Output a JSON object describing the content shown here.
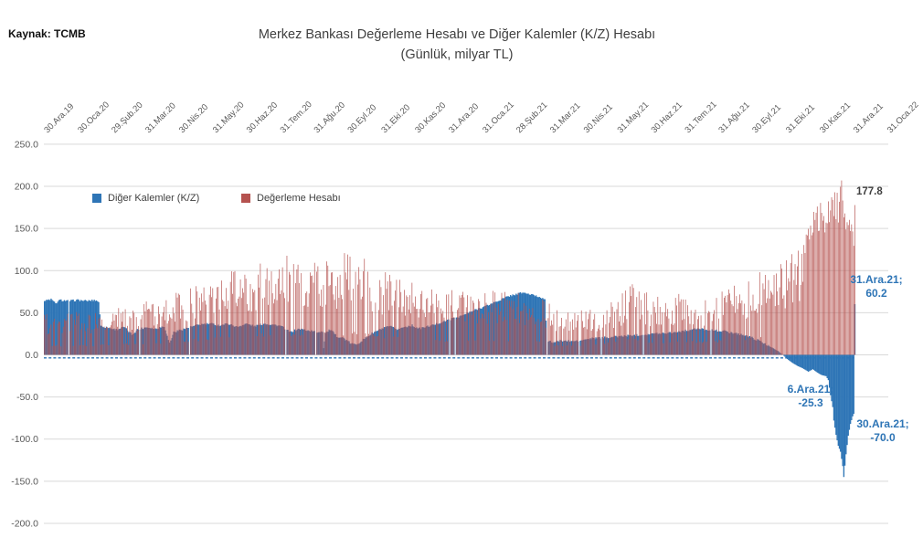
{
  "source_label": "Kaynak: TCMB",
  "chart_data": {
    "type": "bar",
    "title": "Merkez Bankası Değerleme Hesabı ve Diğer Kalemler (K/Z) Hesabı",
    "subtitle": "(Günlük, milyar TL)",
    "frequency": "daily",
    "unit": "milyar TL",
    "grid": true,
    "legend_position": "inside-top-left",
    "ylim": [
      -200,
      250
    ],
    "ytick_step": 50,
    "y_tick_labels": [
      "250.0",
      "200.0",
      "150.0",
      "100.0",
      "50.0",
      "0.0",
      "-50.0",
      "-100.0",
      "-150.0",
      "-200.0"
    ],
    "x_tick_labels": [
      "30.Ara.19",
      "30.Oca.20",
      "29.Şub.20",
      "31.Mar.20",
      "30.Nis.20",
      "31.May.20",
      "30.Haz.20",
      "31.Tem.20",
      "31.Ağu.20",
      "30.Eyl.20",
      "31.Eki.20",
      "30.Kas.20",
      "31.Ara.20",
      "31.Oca.21",
      "28.Şub.21",
      "31.Mar.21",
      "30.Nis.21",
      "31.May.21",
      "30.Haz.21",
      "31.Tem.21",
      "31.Ağu.21",
      "30.Eyl.21",
      "31.Eki.21",
      "30.Kas.21",
      "31.Ara.21",
      "31.Oca.22"
    ],
    "n_points": 733,
    "series": [
      {
        "name": "Diğer Kalemler (K/Z)",
        "color": "#2E75B6",
        "render": "solid-daily-bars",
        "keypoints": [
          [
            0,
            64
          ],
          [
            6,
            66
          ],
          [
            10,
            61
          ],
          [
            14,
            65
          ],
          [
            22,
            64
          ],
          [
            30,
            65
          ],
          [
            38,
            64
          ],
          [
            46,
            65
          ],
          [
            49,
            63
          ],
          [
            51,
            34
          ],
          [
            58,
            32
          ],
          [
            65,
            30
          ],
          [
            72,
            33
          ],
          [
            79,
            24
          ],
          [
            84,
            30
          ],
          [
            92,
            33
          ],
          [
            100,
            31
          ],
          [
            108,
            34
          ],
          [
            113,
            14
          ],
          [
            117,
            27
          ],
          [
            124,
            30
          ],
          [
            132,
            33
          ],
          [
            140,
            36
          ],
          [
            150,
            37
          ],
          [
            158,
            35
          ],
          [
            166,
            37
          ],
          [
            174,
            33
          ],
          [
            182,
            37
          ],
          [
            190,
            34
          ],
          [
            198,
            37
          ],
          [
            206,
            36
          ],
          [
            214,
            34
          ],
          [
            222,
            27
          ],
          [
            230,
            31
          ],
          [
            238,
            29
          ],
          [
            246,
            27
          ],
          [
            251,
            28
          ],
          [
            252,
            8
          ],
          [
            254,
            26
          ],
          [
            258,
            30
          ],
          [
            264,
            22
          ],
          [
            270,
            20
          ],
          [
            276,
            14
          ],
          [
            281,
            12
          ],
          [
            286,
            16
          ],
          [
            292,
            22
          ],
          [
            298,
            27
          ],
          [
            305,
            31
          ],
          [
            312,
            34
          ],
          [
            318,
            30
          ],
          [
            325,
            33
          ],
          [
            332,
            35
          ],
          [
            338,
            31
          ],
          [
            344,
            33
          ],
          [
            350,
            35
          ],
          [
            357,
            38
          ],
          [
            364,
            41
          ],
          [
            371,
            44
          ],
          [
            378,
            47
          ],
          [
            385,
            51
          ],
          [
            392,
            55
          ],
          [
            399,
            58
          ],
          [
            406,
            62
          ],
          [
            413,
            66
          ],
          [
            420,
            70
          ],
          [
            426,
            72
          ],
          [
            432,
            74
          ],
          [
            438,
            72
          ],
          [
            444,
            70
          ],
          [
            448,
            68
          ],
          [
            452,
            67
          ],
          [
            454,
            16
          ],
          [
            460,
            15
          ],
          [
            468,
            17
          ],
          [
            476,
            16
          ],
          [
            484,
            17
          ],
          [
            492,
            19
          ],
          [
            500,
            20
          ],
          [
            510,
            21
          ],
          [
            520,
            22
          ],
          [
            530,
            23
          ],
          [
            540,
            24
          ],
          [
            550,
            25
          ],
          [
            560,
            26
          ],
          [
            570,
            27
          ],
          [
            580,
            29
          ],
          [
            590,
            31
          ],
          [
            598,
            30
          ],
          [
            606,
            29
          ],
          [
            614,
            28
          ],
          [
            622,
            26
          ],
          [
            630,
            24
          ],
          [
            638,
            21
          ],
          [
            645,
            17
          ],
          [
            652,
            12
          ],
          [
            658,
            8
          ],
          [
            663,
            4
          ],
          [
            667,
            0
          ],
          [
            671,
            -5
          ],
          [
            675,
            -9
          ],
          [
            680,
            -13
          ],
          [
            685,
            -16
          ],
          [
            690,
            -20
          ],
          [
            694,
            -17
          ],
          [
            698,
            -21
          ],
          [
            702,
            -24
          ],
          [
            706,
            -25.3
          ],
          [
            708,
            -30
          ],
          [
            710,
            -48
          ],
          [
            712,
            -62
          ],
          [
            713,
            -78
          ],
          [
            715,
            -95
          ],
          [
            717,
            -108
          ],
          [
            719,
            -115
          ],
          [
            721,
            -132
          ],
          [
            722,
            -145
          ],
          [
            724,
            -118
          ],
          [
            726,
            -96
          ],
          [
            728,
            -82
          ],
          [
            730,
            -73
          ],
          [
            731,
            -70
          ],
          [
            732,
            60.2
          ]
        ]
      },
      {
        "name": "Değerleme Hesabı",
        "color": "#B5524F",
        "render": "thin-daily-spikes",
        "keypoints": [
          [
            0,
            50
          ],
          [
            20,
            52
          ],
          [
            40,
            52
          ],
          [
            60,
            56
          ],
          [
            80,
            60
          ],
          [
            100,
            66
          ],
          [
            120,
            75
          ],
          [
            140,
            85
          ],
          [
            160,
            95
          ],
          [
            180,
            105
          ],
          [
            200,
            114
          ],
          [
            215,
            120
          ],
          [
            230,
            115
          ],
          [
            245,
            120
          ],
          [
            260,
            115
          ],
          [
            270,
            120
          ],
          [
            278,
            128
          ],
          [
            285,
            122
          ],
          [
            295,
            112
          ],
          [
            305,
            100
          ],
          [
            315,
            112
          ],
          [
            322,
            104
          ],
          [
            330,
            92
          ],
          [
            340,
            85
          ],
          [
            352,
            80
          ],
          [
            365,
            78
          ],
          [
            375,
            76
          ],
          [
            385,
            77
          ],
          [
            395,
            76
          ],
          [
            405,
            78
          ],
          [
            415,
            78
          ],
          [
            425,
            80
          ],
          [
            435,
            76
          ],
          [
            445,
            72
          ],
          [
            452,
            68
          ],
          [
            458,
            57
          ],
          [
            465,
            52
          ],
          [
            472,
            54
          ],
          [
            480,
            52
          ],
          [
            488,
            55
          ],
          [
            495,
            58
          ],
          [
            503,
            62
          ],
          [
            512,
            66
          ],
          [
            520,
            72
          ],
          [
            526,
            80
          ],
          [
            530,
            90
          ],
          [
            535,
            82
          ],
          [
            542,
            76
          ],
          [
            550,
            72
          ],
          [
            558,
            68
          ],
          [
            565,
            72
          ],
          [
            572,
            74
          ],
          [
            580,
            72
          ],
          [
            588,
            74
          ],
          [
            595,
            70
          ],
          [
            602,
            74
          ],
          [
            610,
            78
          ],
          [
            618,
            82
          ],
          [
            626,
            88
          ],
          [
            634,
            92
          ],
          [
            642,
            98
          ],
          [
            650,
            104
          ],
          [
            656,
            100
          ],
          [
            662,
            118
          ],
          [
            668,
            110
          ],
          [
            674,
            122
          ],
          [
            680,
            132
          ],
          [
            686,
            148
          ],
          [
            692,
            168
          ],
          [
            698,
            180
          ],
          [
            704,
            188
          ],
          [
            710,
            194
          ],
          [
            715,
            200
          ],
          [
            720,
            207
          ],
          [
            723,
            192
          ],
          [
            726,
            176
          ],
          [
            729,
            158
          ],
          [
            731,
            162
          ],
          [
            732,
            177.8
          ]
        ]
      }
    ],
    "gap_days": [
      22,
      86,
      131,
      218,
      245,
      366,
      371,
      454,
      483,
      503,
      541,
      602
    ],
    "pinned_values": {
      "last_red": 177.8,
      "last_blue": 60.2,
      "dec6_blue": -25.3,
      "dec30_blue": -70.0,
      "max_red": 207
    },
    "zero_dash_line": {
      "color": "#2E75B6",
      "style": "dashed"
    },
    "annotations": [
      {
        "id": "last-red-value",
        "text": "177.8",
        "color": "#404040"
      },
      {
        "id": "last-blue-callout",
        "line1": "31.Ara.21;",
        "line2": "60.2",
        "color": "#2E75B6"
      },
      {
        "id": "dec6-callout",
        "line1": "6.Ara.21;",
        "line2": "-25.3",
        "color": "#2E75B6"
      },
      {
        "id": "dec30-callout",
        "line1": "30.Ara.21;",
        "line2": "-70.0",
        "color": "#2E75B6"
      }
    ],
    "axis_color": "#595959",
    "grid_color": "#D9D9D9"
  }
}
